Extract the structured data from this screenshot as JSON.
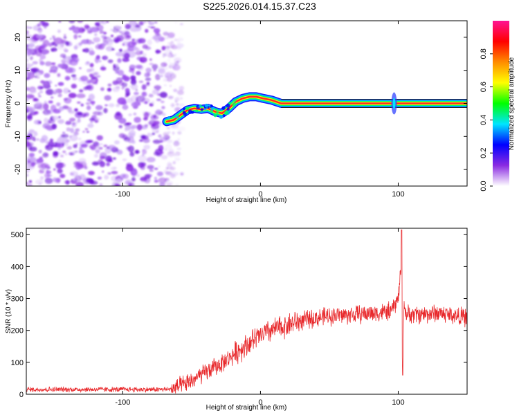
{
  "title": "S225.2026.014.15.37.C23",
  "chart_data": [
    {
      "type": "heatmap",
      "xlabel": "Height of straight line (km)",
      "ylabel": "Frequency (Hz)",
      "xlim": [
        -170,
        150
      ],
      "ylim": [
        -25,
        25
      ],
      "xticks": [
        -100,
        0,
        100
      ],
      "yticks": [
        -20,
        -10,
        0,
        10,
        20
      ],
      "colorbar": {
        "label": "Normalized spectral amplitude",
        "range": [
          0,
          1
        ],
        "ticks": [
          "0.0",
          "0.2",
          "0.4",
          "0.6",
          "0.8"
        ],
        "colors": [
          "#ffffff",
          "#8a2be2",
          "#0000ff",
          "#00e5ff",
          "#00ff00",
          "#ffff00",
          "#ff8c00",
          "#ff0000",
          "#ff1493"
        ]
      },
      "noise_region_x": [
        -170,
        -65
      ],
      "ridge": {
        "x": [
          -68,
          -63,
          -58,
          -53,
          -48,
          -43,
          -38,
          -33,
          -28,
          -23,
          -18,
          -13,
          -8,
          -3,
          2,
          8,
          15,
          40,
          80,
          88,
          92,
          96,
          100,
          150
        ],
        "freq": [
          -5.5,
          -5,
          -3.5,
          -2,
          -1.5,
          -1.8,
          -1.5,
          -2.5,
          -3,
          -1.5,
          0.5,
          1.5,
          2,
          2,
          1.5,
          1,
          0,
          0,
          0,
          0,
          0,
          0,
          0,
          0
        ]
      }
    },
    {
      "type": "line",
      "xlabel": "Height of straight line (km)",
      "ylabel": "SNR (10 * v/v)",
      "xlim": [
        -170,
        150
      ],
      "ylim": [
        0,
        520
      ],
      "xticks": [
        -100,
        0,
        100
      ],
      "yticks": [
        0,
        100,
        200,
        300,
        400,
        500
      ],
      "color": "#e8282b",
      "series": [
        {
          "name": "SNR",
          "x": [
            -170,
            -150,
            -120,
            -100,
            -80,
            -65,
            -55,
            -45,
            -35,
            -25,
            -15,
            -5,
            5,
            15,
            25,
            35,
            50,
            70,
            85,
            95,
            100,
            102,
            103,
            104,
            106,
            115,
            130,
            150
          ],
          "values": [
            15,
            15,
            15,
            15,
            15,
            15,
            30,
            55,
            80,
            105,
            140,
            170,
            195,
            210,
            225,
            235,
            245,
            250,
            255,
            260,
            300,
            400,
            60,
            280,
            250,
            250,
            255,
            240
          ]
        }
      ]
    }
  ]
}
